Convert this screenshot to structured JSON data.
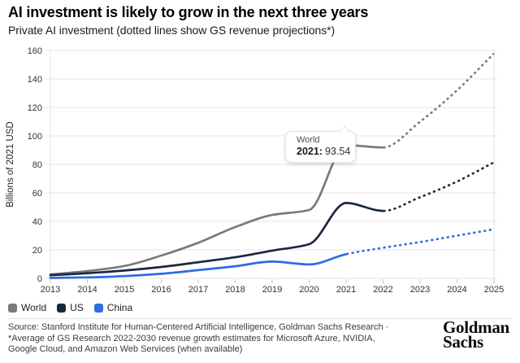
{
  "header": {
    "title": "AI investment is likely to grow in the next three years",
    "subtitle": "Private AI investment (dotted lines show GS revenue projections*)"
  },
  "chart_data": {
    "type": "line",
    "title": "AI investment is likely to grow in the next three years",
    "subtitle": "Private AI investment (dotted lines show GS revenue projections*)",
    "ylabel": "Billions of 2021 USD",
    "ylim": [
      0,
      160
    ],
    "ytick_step": 20,
    "grid": "horizontal",
    "legend_position": "bottom-left",
    "x": [
      2013,
      2014,
      2015,
      2016,
      2017,
      2018,
      2019,
      2020,
      2021,
      2022,
      2023,
      2024,
      2025
    ],
    "series": [
      {
        "name": "World",
        "color": "#7a7a7a",
        "solid_until_x": 2022,
        "values": [
          2.8,
          5.1,
          8.7,
          16,
          25,
          36,
          44.5,
          48,
          93.54,
          91.9,
          110,
          132,
          158
        ]
      },
      {
        "name": "US",
        "color": "#1a2740",
        "solid_until_x": 2022,
        "values": [
          2.2,
          3.6,
          5.5,
          8,
          11.3,
          14.8,
          19.5,
          24,
          52.9,
          47.4,
          57,
          68,
          81.5
        ]
      },
      {
        "name": "China",
        "color": "#2d6ce3",
        "solid_until_x": 2021,
        "values": [
          0.3,
          0.7,
          1.6,
          3.2,
          5.8,
          8.5,
          11.8,
          9.8,
          17,
          21.5,
          25.5,
          30,
          34.5
        ]
      }
    ]
  },
  "tooltip": {
    "series": "World",
    "label": "2021:",
    "value": "93.54"
  },
  "footer": {
    "lines": [
      "Source: Stanford Institute for Human-Centered Artificial Intelligence, Goldman Sachs Research ·",
      "*Average of GS Research 2022-2030 revenue growth estimates for Microsoft Azure, NVIDIA,",
      "Google Cloud, and Amazon Web Services (when available)"
    ],
    "logo_line1": "Goldman",
    "logo_line2": "Sachs"
  }
}
